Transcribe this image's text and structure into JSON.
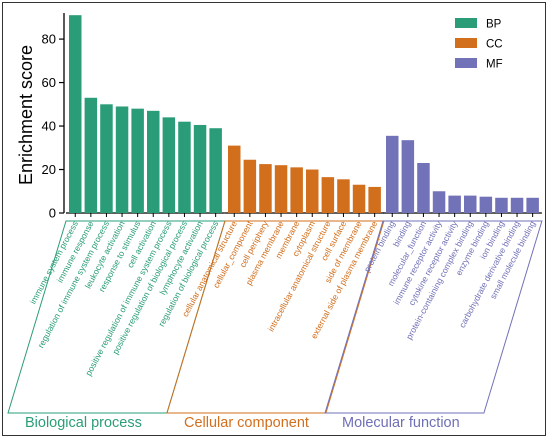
{
  "chart_data": {
    "type": "bar",
    "ylabel": "Enrichment score",
    "ylim": [
      0,
      92
    ],
    "yticks": [
      0,
      20,
      40,
      60,
      80
    ],
    "legend_position": "top-right",
    "groups": [
      {
        "name": "BP",
        "label": "Biological process",
        "color": "#2a9d78",
        "categories": [
          "immune system process",
          "immune response",
          "regulation of immune system process",
          "leukocyte activation",
          "response to stimulus",
          "cell activation",
          "positive regulation of immune system process",
          "positive regulation of biological process",
          "lymphocyte activation",
          "regulation of biological process"
        ],
        "values": [
          91,
          53,
          50,
          49,
          48,
          47,
          44,
          42,
          40.5,
          39
        ]
      },
      {
        "name": "CC",
        "label": "Cellular component",
        "color": "#d26f1d",
        "categories": [
          "cellular anatomical structure",
          "cellular_component",
          "cell periphery",
          "plasma membrane",
          "membrane",
          "cytoplasm",
          "intracellular anatomical structure",
          "cell surface",
          "side of membrane",
          "external side of plasma membrane"
        ],
        "values": [
          31,
          24.5,
          22.5,
          22,
          21,
          20,
          16.5,
          15.5,
          13,
          12
        ]
      },
      {
        "name": "MF",
        "label": "Molecular function",
        "color": "#7272b8",
        "categories": [
          "protein binding",
          "binding",
          "molecular_function",
          "immune receptor activity",
          "cytokine receptor activity",
          "protein-containing complex binding",
          "enzyme binding",
          "ion binding",
          "carbohydrate derivative binding",
          "small molecule binding"
        ],
        "values": [
          35.5,
          33.5,
          23,
          10,
          8,
          8,
          7.5,
          7,
          7,
          7
        ]
      }
    ]
  }
}
